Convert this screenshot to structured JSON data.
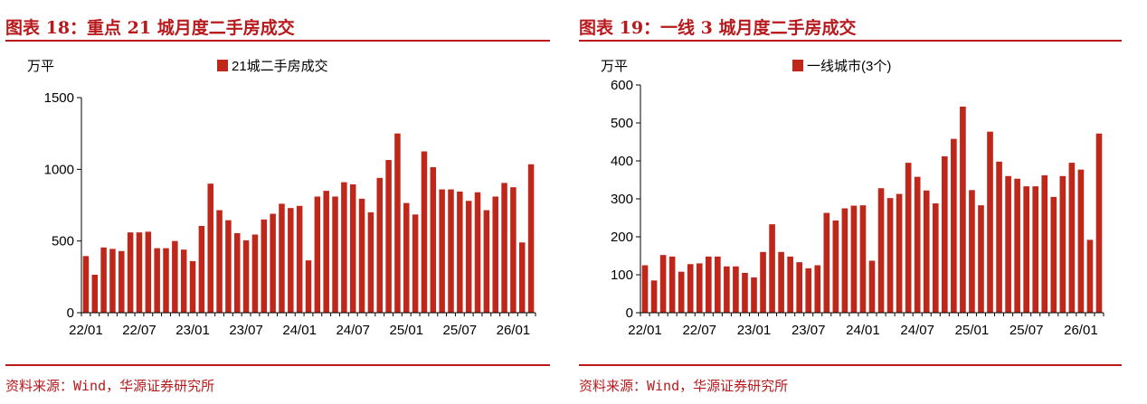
{
  "charts": [
    {
      "title": "图表 18：重点 21 城月度二手房成交",
      "source": "资料来源：Wind，华源证券研究所"
    },
    {
      "title": "图表 19：一线 3 城月度二手房成交",
      "source": "资料来源：Wind，华源证券研究所"
    }
  ],
  "colors": {
    "accent": "#b8191c",
    "bar": "#c0271b",
    "axis": "#000000"
  },
  "chart_data": [
    {
      "type": "bar",
      "title": "图表 18：重点 21 城月度二手房成交",
      "unit_label": "万平",
      "legend": "21城二手房成交",
      "legend_position": "top-center",
      "ylim": [
        0,
        1500
      ],
      "yticks": [
        0,
        500,
        1000,
        1500
      ],
      "grid": false,
      "xtick_labels": [
        "22/01",
        "22/07",
        "23/01",
        "23/07",
        "24/01",
        "24/07",
        "25/01",
        "25/07",
        "26/01"
      ],
      "xtick_every": 6,
      "series": [
        {
          "name": "21城二手房成交",
          "values": [
            395,
            265,
            455,
            445,
            430,
            560,
            560,
            565,
            450,
            450,
            500,
            440,
            360,
            605,
            900,
            715,
            645,
            555,
            505,
            545,
            650,
            690,
            760,
            730,
            745,
            365,
            810,
            850,
            810,
            910,
            895,
            795,
            700,
            940,
            1065,
            1250,
            765,
            685,
            1125,
            1015,
            860,
            860,
            845,
            780,
            840,
            715,
            810,
            905,
            875,
            490,
            1035
          ]
        }
      ]
    },
    {
      "type": "bar",
      "title": "图表 19：一线 3 城月度二手房成交",
      "unit_label": "万平",
      "legend": "一线城市(3个)",
      "legend_position": "top-center",
      "ylim": [
        0,
        600
      ],
      "yticks": [
        0,
        100,
        200,
        300,
        400,
        500,
        600
      ],
      "grid": false,
      "xtick_labels": [
        "22/01",
        "22/07",
        "23/01",
        "23/07",
        "24/01",
        "24/07",
        "25/01",
        "25/07",
        "26/01"
      ],
      "xtick_every": 6,
      "series": [
        {
          "name": "一线城市(3个)",
          "values": [
            125,
            85,
            152,
            148,
            108,
            128,
            130,
            148,
            148,
            122,
            122,
            105,
            93,
            160,
            233,
            160,
            148,
            133,
            117,
            125,
            263,
            243,
            275,
            282,
            283,
            137,
            328,
            302,
            313,
            395,
            358,
            322,
            288,
            412,
            458,
            543,
            323,
            283,
            477,
            398,
            360,
            353,
            333,
            333,
            362,
            305,
            360,
            395,
            377,
            192,
            472
          ]
        }
      ]
    }
  ]
}
